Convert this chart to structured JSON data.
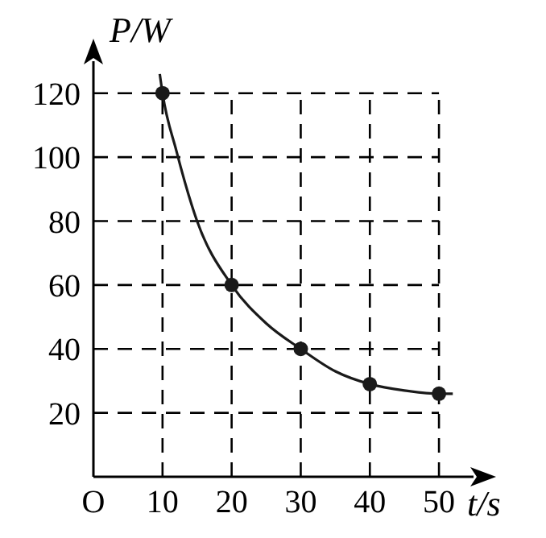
{
  "chart_data": {
    "type": "line",
    "xlabel": "t/s",
    "ylabel": "P/W",
    "xlim": [
      0,
      55
    ],
    "ylim": [
      0,
      130
    ],
    "xticks": [
      {
        "value": 0,
        "label": "O"
      },
      10,
      20,
      30,
      40,
      50
    ],
    "yticks": [
      20,
      40,
      60,
      80,
      100,
      120
    ],
    "grid": true,
    "series": [
      {
        "color": "#1a1a1a",
        "marker": "none",
        "x": [
          9.6,
          10,
          12,
          15,
          20,
          25,
          30,
          35,
          40,
          45,
          50,
          52
        ],
        "values": [
          126,
          120,
          102,
          80,
          60,
          48,
          40,
          33,
          29,
          27,
          26,
          26
        ]
      },
      {
        "type": "scatter",
        "color": "#1a1a1a",
        "marker": "circle",
        "x": [
          10,
          20,
          30,
          40,
          50
        ],
        "values": [
          120,
          60,
          40,
          29,
          26
        ]
      }
    ]
  }
}
